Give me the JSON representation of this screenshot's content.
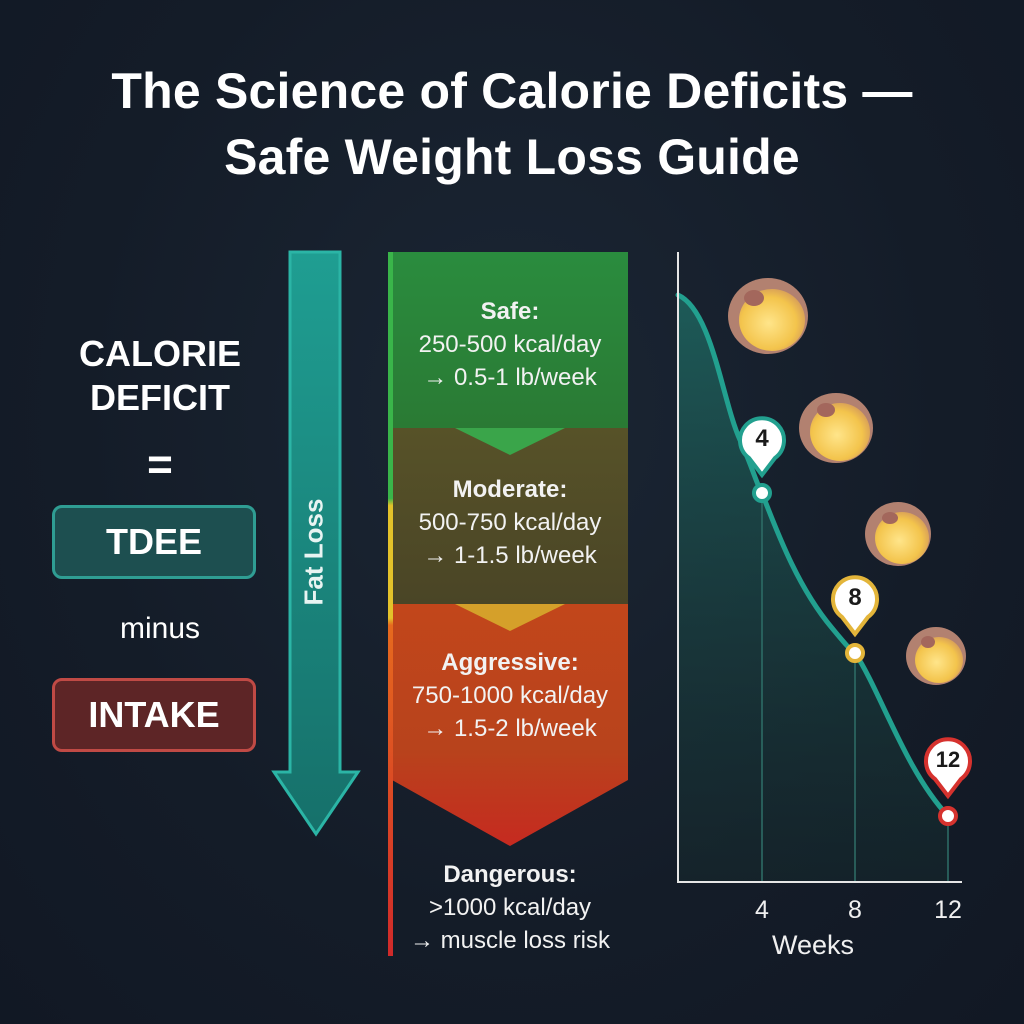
{
  "title": {
    "line1": "The Science of Calorie Deficits —",
    "line2": "Safe Weight Loss Guide"
  },
  "formula": {
    "heading_line1": "CALORIE",
    "heading_line2": "DEFICIT",
    "equals": "=",
    "term1": "TDEE",
    "operator": "minus",
    "term2": "INTAKE"
  },
  "arrow_label": "Fat Loss",
  "zones": [
    {
      "heading": "Safe:",
      "line1": "250-500 kcal/day",
      "line2": "→ 0.5-1 lb/week",
      "color": "#2f8a3f"
    },
    {
      "heading": "Moderate:",
      "line1": "500-750 kcal/day",
      "line2": "→ 1-1.5 lb/week",
      "color": "#4d4a2a"
    },
    {
      "heading": "Aggressive:",
      "line1": "750-1000 kcal/day",
      "line2": "→ 1.5-2 lb/week",
      "color": "#c0461c"
    },
    {
      "heading": "Dangerous:",
      "line1": ">1000 kcal/day",
      "line2": "→ muscle loss risk",
      "color": "#d4302a"
    }
  ],
  "chart": {
    "x_label": "Weeks",
    "ticks": [
      "4",
      "8",
      "12"
    ],
    "markers": [
      "4",
      "8",
      "12"
    ],
    "line_color": "#22a08f"
  }
}
